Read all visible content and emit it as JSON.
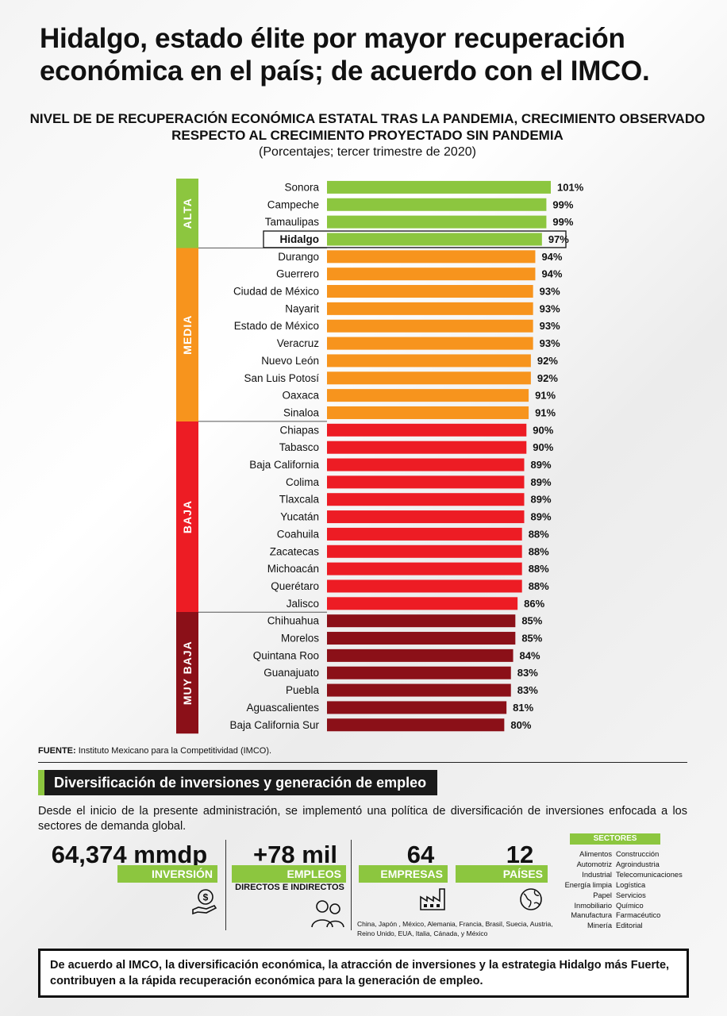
{
  "title": "Hidalgo, estado élite por mayor recuperación económica en el país; de acuerdo con el IMCO.",
  "subtitle": "NIVEL DE DE RECUPERACIÓN ECONÓMICA ESTATAL TRAS LA PANDEMIA, CRECIMIENTO OBSERVADO RESPECTO AL CRECIMIENTO  PROYECTADO SIN PANDEMIA",
  "subtitle_note": "(Porcentajes; tercer trimestre de 2020)",
  "colors": {
    "alta": "#8cc63f",
    "media": "#f7941d",
    "baja": "#ed1c24",
    "muy_baja": "#8b1018",
    "accent_green": "#8cc63f"
  },
  "chart_data": {
    "type": "bar",
    "orientation": "horizontal",
    "title": "NIVEL DE DE RECUPERACIÓN ECONÓMICA ESTATAL TRAS LA PANDEMIA, CRECIMIENTO OBSERVADO RESPECTO AL CRECIMIENTO  PROYECTADO SIN PANDEMIA",
    "unit": "%",
    "highlight": "Hidalgo",
    "groups": [
      {
        "key": "alta",
        "label": "ALTA",
        "start": 0,
        "end": 3
      },
      {
        "key": "media",
        "label": "MEDIA",
        "start": 4,
        "end": 13
      },
      {
        "key": "baja",
        "label": "BAJA",
        "start": 14,
        "end": 24
      },
      {
        "key": "muy_baja",
        "label": "MUY BAJA",
        "start": 25,
        "end": 31
      }
    ],
    "bars": [
      {
        "state": "Sonora",
        "value": 101,
        "label": "101%",
        "group": "alta"
      },
      {
        "state": "Campeche",
        "value": 99,
        "label": "99%",
        "group": "alta"
      },
      {
        "state": "Tamaulipas",
        "value": 99,
        "label": "99%",
        "group": "alta"
      },
      {
        "state": "Hidalgo",
        "value": 97,
        "label": "97%",
        "group": "alta"
      },
      {
        "state": "Durango",
        "value": 94,
        "label": "94%",
        "group": "media"
      },
      {
        "state": "Guerrero",
        "value": 94,
        "label": "94%",
        "group": "media"
      },
      {
        "state": "Ciudad de México",
        "value": 93,
        "label": "93%",
        "group": "media"
      },
      {
        "state": "Nayarit",
        "value": 93,
        "label": "93%",
        "group": "media"
      },
      {
        "state": "Estado de México",
        "value": 93,
        "label": "93%",
        "group": "media"
      },
      {
        "state": "Veracruz",
        "value": 93,
        "label": "93%",
        "group": "media"
      },
      {
        "state": "Nuevo León",
        "value": 92,
        "label": "92%",
        "group": "media"
      },
      {
        "state": "San Luis Potosí",
        "value": 92,
        "label": "92%",
        "group": "media"
      },
      {
        "state": "Oaxaca",
        "value": 91,
        "label": "91%",
        "group": "media"
      },
      {
        "state": "Sinaloa",
        "value": 91,
        "label": "91%",
        "group": "media"
      },
      {
        "state": "Chiapas",
        "value": 90,
        "label": "90%",
        "group": "baja"
      },
      {
        "state": "Tabasco",
        "value": 90,
        "label": "90%",
        "group": "baja"
      },
      {
        "state": "Baja California",
        "value": 89,
        "label": "89%",
        "group": "baja"
      },
      {
        "state": "Colima",
        "value": 89,
        "label": "89%",
        "group": "baja"
      },
      {
        "state": "Tlaxcala",
        "value": 89,
        "label": "89%",
        "group": "baja"
      },
      {
        "state": "Yucatán",
        "value": 89,
        "label": "89%",
        "group": "baja"
      },
      {
        "state": "Coahuila",
        "value": 88,
        "label": "88%",
        "group": "baja"
      },
      {
        "state": "Zacatecas",
        "value": 88,
        "label": "88%",
        "group": "baja"
      },
      {
        "state": "Michoacán",
        "value": 88,
        "label": "88%",
        "group": "baja"
      },
      {
        "state": "Querétaro",
        "value": 88,
        "label": "88%",
        "group": "baja"
      },
      {
        "state": "Jalisco",
        "value": 86,
        "label": "86%",
        "group": "baja"
      },
      {
        "state": "Chihuahua",
        "value": 85,
        "label": "85%",
        "group": "muy_baja"
      },
      {
        "state": "Morelos",
        "value": 85,
        "label": "85%",
        "group": "muy_baja"
      },
      {
        "state": "Quintana Roo",
        "value": 84,
        "label": "84%",
        "group": "muy_baja"
      },
      {
        "state": "Guanajuato",
        "value": 83,
        "label": "83%",
        "group": "muy_baja"
      },
      {
        "state": "Puebla",
        "value": 83,
        "label": "83%",
        "group": "muy_baja"
      },
      {
        "state": "Aguascalientes",
        "value": 81,
        "label": "81%",
        "group": "muy_baja"
      },
      {
        "state": "Baja California Sur",
        "value": 80,
        "label": "80%",
        "group": "muy_baja"
      }
    ]
  },
  "source": {
    "label": "FUENTE:",
    "text": "Instituto Mexicano para la Competitividad (IMCO)."
  },
  "section": {
    "title": "Diversificación de inversiones y generación de empleo",
    "intro": "Desde el inicio de la presente administración, se implementó una política de diversificación de inversiones enfocada a los sectores de demanda global."
  },
  "kpis": {
    "inversion": {
      "value": "64,374 mmdp",
      "label": "INVERSIÓN"
    },
    "empleos": {
      "value": "+78 mil",
      "label": "EMPLEOS",
      "sub": "DIRECTOS E INDIRECTOS"
    },
    "empresas": {
      "value": "64",
      "label": "EMPRESAS"
    },
    "paises": {
      "value": "12",
      "label": "PAÍSES",
      "countries": "China, Japón , México, Alemania, Francia, Brasil, Suecia, Austria, Reino Unido, EUA, Italia, Cánada, y México"
    }
  },
  "sectors": {
    "title": "SECTORES",
    "left": [
      "Alimentos",
      "Automotriz",
      "Industrial",
      "Energía limpia",
      "Papel",
      "Inmobiliario",
      "Manufactura",
      "Minería"
    ],
    "right": [
      "Construcción",
      "Agroindustria",
      "Telecomunicaciones",
      "Logística",
      "Servicios",
      "Químico",
      "Farmacéutico",
      "Editorial"
    ]
  },
  "footer": "De acuerdo al IMCO, la diversificación económica, la atracción de inversiones y la estrategia Hidalgo más Fuerte, contribuyen a la rápida recuperación económica para la generación de empleo."
}
